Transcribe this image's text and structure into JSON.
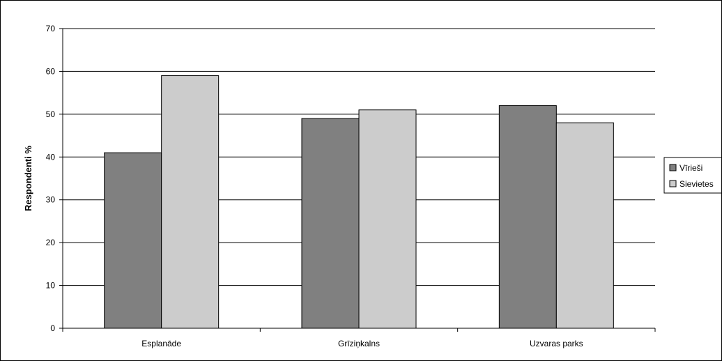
{
  "chart_data": {
    "type": "bar",
    "title": "",
    "xlabel": "",
    "ylabel": "Respondenti %",
    "ylim": [
      0,
      70
    ],
    "yticks": [
      0,
      10,
      20,
      30,
      40,
      50,
      60,
      70
    ],
    "grid": true,
    "legend_position": "right",
    "categories": [
      "Esplanāde",
      "Grīziņkalns",
      "Uzvaras parks"
    ],
    "series": [
      {
        "name": "Vīrieši",
        "color": "#808080",
        "values": [
          41,
          49,
          52
        ]
      },
      {
        "name": "Sievietes",
        "color": "#cccccc",
        "values": [
          59,
          51,
          48
        ]
      }
    ]
  }
}
